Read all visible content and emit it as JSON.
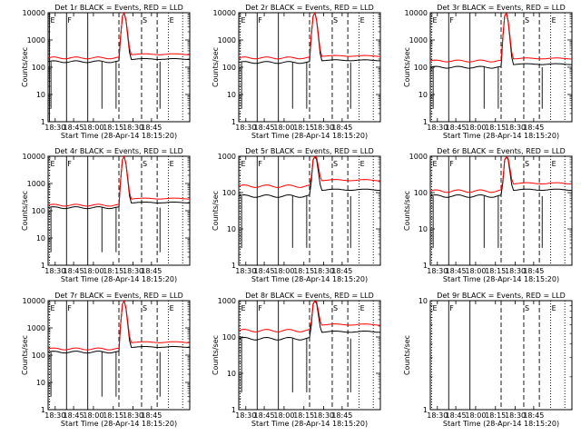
{
  "chart_data": [
    {
      "type": "line",
      "title": "Det 1r BLACK = Events, RED = LLD",
      "ylabel": "Counts/sec",
      "xlabel": "Start Time (28-Apr-14 18:15:20)",
      "x_tick_labels": [
        "18:30",
        "18:45",
        "18:00",
        "18:15",
        "18:30",
        "18:45"
      ],
      "y_tick_labels": [
        "1",
        "10",
        "100",
        "1000",
        "10000"
      ],
      "ylim": [
        1,
        10000
      ],
      "y_scale": "log",
      "markers": [
        {
          "label": "E",
          "line": "solid"
        },
        {
          "label": "F",
          "line": "solid"
        },
        {
          "label": "",
          "line": "solid"
        },
        {
          "label": "",
          "line": "dashed"
        },
        {
          "label": "S",
          "line": "dashed"
        },
        {
          "label": "",
          "line": "dashed"
        },
        {
          "label": "E",
          "line": "dotted"
        },
        {
          "label": "",
          "line": "dotted"
        }
      ],
      "series": [
        {
          "color": "#000000",
          "pre": 160,
          "post": 200,
          "has_data": true
        },
        {
          "color": "#ff0000",
          "pre": 220,
          "post": 300,
          "has_data": true
        }
      ]
    },
    {
      "type": "line",
      "title": "Det 2r BLACK = Events, RED = LLD",
      "ylabel": "Counts/sec",
      "xlabel": "Start Time (28-Apr-14 18:15:20)",
      "x_tick_labels": [
        "18:30",
        "18:45",
        "18:00",
        "18:15",
        "18:30",
        "18:45"
      ],
      "y_tick_labels": [
        "1",
        "10",
        "100",
        "1000",
        "10000"
      ],
      "ylim": [
        1,
        10000
      ],
      "y_scale": "log",
      "markers": [
        {
          "label": "E",
          "line": "dotted"
        },
        {
          "label": "F",
          "line": "solid"
        },
        {
          "label": "",
          "line": "solid"
        },
        {
          "label": "",
          "line": "dashed"
        },
        {
          "label": "S",
          "line": "dashed"
        },
        {
          "label": "",
          "line": "dashed"
        },
        {
          "label": "E",
          "line": "dotted"
        },
        {
          "label": "",
          "line": "dotted"
        }
      ],
      "series": [
        {
          "color": "#000000",
          "pre": 150,
          "post": 180,
          "has_data": true
        },
        {
          "color": "#ff0000",
          "pre": 220,
          "post": 260,
          "has_data": true
        }
      ]
    },
    {
      "type": "line",
      "title": "Det 3r BLACK = Events, RED = LLD",
      "ylabel": "Counts/sec",
      "xlabel": "Start Time (28-Apr-14 18:15:20)",
      "x_tick_labels": [
        "18:30",
        "18:45",
        "18:00",
        "18:15",
        "18:30",
        "18:45"
      ],
      "y_tick_labels": [
        "1",
        "10",
        "100",
        "1000",
        "10000"
      ],
      "ylim": [
        1,
        10000
      ],
      "y_scale": "log",
      "markers": [
        {
          "label": "E",
          "line": "dotted"
        },
        {
          "label": "F",
          "line": "solid"
        },
        {
          "label": "",
          "line": "solid"
        },
        {
          "label": "",
          "line": "dashed"
        },
        {
          "label": "S",
          "line": "dashed"
        },
        {
          "label": "",
          "line": "dashed"
        },
        {
          "label": "E",
          "line": "dotted"
        },
        {
          "label": "",
          "line": "dotted"
        }
      ],
      "series": [
        {
          "color": "#000000",
          "pre": 100,
          "post": 130,
          "has_data": true
        },
        {
          "color": "#ff0000",
          "pre": 170,
          "post": 210,
          "has_data": true
        }
      ]
    },
    {
      "type": "line",
      "title": "Det 4r BLACK = Events, RED = LLD",
      "ylabel": "Counts/sec",
      "xlabel": "Start Time (28-Apr-14 18:15:20)",
      "x_tick_labels": [
        "18:30",
        "18:45",
        "18:00",
        "18:15",
        "18:30",
        "18:45"
      ],
      "y_tick_labels": [
        "1",
        "10",
        "100",
        "1000",
        "10000"
      ],
      "ylim": [
        1,
        10000
      ],
      "y_scale": "log",
      "markers": [
        {
          "label": "E",
          "line": "dotted"
        },
        {
          "label": "F",
          "line": "solid"
        },
        {
          "label": "",
          "line": "solid"
        },
        {
          "label": "",
          "line": "dashed"
        },
        {
          "label": "S",
          "line": "dashed"
        },
        {
          "label": "",
          "line": "dashed"
        },
        {
          "label": "E",
          "line": "dotted"
        },
        {
          "label": "",
          "line": "dotted"
        }
      ],
      "series": [
        {
          "color": "#000000",
          "pre": 130,
          "post": 200,
          "has_data": true
        },
        {
          "color": "#ff0000",
          "pre": 160,
          "post": 280,
          "has_data": true
        }
      ]
    },
    {
      "type": "line",
      "title": "Det 5r BLACK = Events, RED = LLD",
      "ylabel": "Counts/sec",
      "xlabel": "Start Time (28-Apr-14 18:15:20)",
      "x_tick_labels": [
        "18:30",
        "18:45",
        "18:00",
        "18:15",
        "18:30",
        "18:45"
      ],
      "y_tick_labels": [
        "1",
        "10",
        "100",
        "1000"
      ],
      "ylim": [
        1,
        1000
      ],
      "y_scale": "log",
      "markers": [
        {
          "label": "E",
          "line": "dotted"
        },
        {
          "label": "F",
          "line": "solid"
        },
        {
          "label": "",
          "line": "solid"
        },
        {
          "label": "",
          "line": "dashed"
        },
        {
          "label": "S",
          "line": "dashed"
        },
        {
          "label": "",
          "line": "dashed"
        },
        {
          "label": "E",
          "line": "dotted"
        },
        {
          "label": "",
          "line": "dotted"
        }
      ],
      "series": [
        {
          "color": "#000000",
          "pre": 80,
          "post": 120,
          "has_data": true
        },
        {
          "color": "#ff0000",
          "pre": 150,
          "post": 220,
          "has_data": true
        }
      ]
    },
    {
      "type": "line",
      "title": "Det 6r BLACK = Events, RED = LLD",
      "ylabel": "Counts/sec",
      "xlabel": "Start Time (28-Apr-14 18:15:20)",
      "x_tick_labels": [
        "18:30",
        "18:45",
        "18:00",
        "18:15",
        "18:30",
        "18:45"
      ],
      "y_tick_labels": [
        "1",
        "10",
        "100",
        "1000"
      ],
      "ylim": [
        1,
        1000
      ],
      "y_scale": "log",
      "markers": [
        {
          "label": "E",
          "line": "dotted"
        },
        {
          "label": "F",
          "line": "solid"
        },
        {
          "label": "",
          "line": "solid"
        },
        {
          "label": "",
          "line": "dashed"
        },
        {
          "label": "S",
          "line": "dashed"
        },
        {
          "label": "",
          "line": "dashed"
        },
        {
          "label": "E",
          "line": "dotted"
        },
        {
          "label": "",
          "line": "dotted"
        }
      ],
      "series": [
        {
          "color": "#000000",
          "pre": 80,
          "post": 120,
          "has_data": true
        },
        {
          "color": "#ff0000",
          "pre": 110,
          "post": 180,
          "has_data": true
        }
      ]
    },
    {
      "type": "line",
      "title": "Det 7r BLACK = Events, RED = LLD",
      "ylabel": "Counts/sec",
      "xlabel": "Start Time (28-Apr-14 18:15:20)",
      "x_tick_labels": [
        "18:30",
        "18:45",
        "18:00",
        "18:15",
        "18:30",
        "18:45"
      ],
      "y_tick_labels": [
        "1",
        "10",
        "100",
        "1000",
        "10000"
      ],
      "ylim": [
        1,
        10000
      ],
      "y_scale": "log",
      "markers": [
        {
          "label": "E",
          "line": "dotted"
        },
        {
          "label": "F",
          "line": "solid"
        },
        {
          "label": "",
          "line": "solid"
        },
        {
          "label": "",
          "line": "dashed"
        },
        {
          "label": "S",
          "line": "dashed"
        },
        {
          "label": "",
          "line": "dashed"
        },
        {
          "label": "E",
          "line": "dotted"
        },
        {
          "label": "",
          "line": "dotted"
        }
      ],
      "series": [
        {
          "color": "#000000",
          "pre": 130,
          "post": 200,
          "has_data": true
        },
        {
          "color": "#ff0000",
          "pre": 170,
          "post": 300,
          "has_data": true
        }
      ]
    },
    {
      "type": "line",
      "title": "Det 8r BLACK = Events, RED = LLD",
      "ylabel": "Counts/sec",
      "xlabel": "Start Time (28-Apr-14 18:15:20)",
      "x_tick_labels": [
        "18:30",
        "18:45",
        "18:00",
        "18:15",
        "18:30",
        "18:45"
      ],
      "y_tick_labels": [
        "1",
        "10",
        "100",
        "1000"
      ],
      "ylim": [
        1,
        1000
      ],
      "y_scale": "log",
      "markers": [
        {
          "label": "E",
          "line": "dotted"
        },
        {
          "label": "F",
          "line": "solid"
        },
        {
          "label": "",
          "line": "solid"
        },
        {
          "label": "",
          "line": "dashed"
        },
        {
          "label": "S",
          "line": "dashed"
        },
        {
          "label": "",
          "line": "dashed"
        },
        {
          "label": "E",
          "line": "dotted"
        },
        {
          "label": "",
          "line": "dotted"
        }
      ],
      "series": [
        {
          "color": "#000000",
          "pre": 90,
          "post": 140,
          "has_data": true
        },
        {
          "color": "#ff0000",
          "pre": 150,
          "post": 220,
          "has_data": true
        }
      ]
    },
    {
      "type": "line",
      "title": "Det 9r BLACK = Events, RED = LLD",
      "ylabel": "Counts/sec",
      "xlabel": "Start Time (28-Apr-14 18:15:20)",
      "x_tick_labels": [
        "18:30",
        "18:45",
        "18:00",
        "18:15",
        "18:30",
        "18:45"
      ],
      "y_tick_labels": [
        "1",
        "10"
      ],
      "ylim": [
        1,
        10
      ],
      "y_scale": "log",
      "markers": [
        {
          "label": "E",
          "line": "dotted"
        },
        {
          "label": "F",
          "line": "solid"
        },
        {
          "label": "",
          "line": "solid"
        },
        {
          "label": "",
          "line": "dashed"
        },
        {
          "label": "S",
          "line": "dashed"
        },
        {
          "label": "",
          "line": "dashed"
        },
        {
          "label": "E",
          "line": "dotted"
        },
        {
          "label": "",
          "line": "dotted"
        }
      ],
      "series": [
        {
          "color": "#000000",
          "pre": 0,
          "post": 0,
          "has_data": false
        },
        {
          "color": "#ff0000",
          "pre": 0,
          "post": 0,
          "has_data": false
        }
      ]
    }
  ]
}
